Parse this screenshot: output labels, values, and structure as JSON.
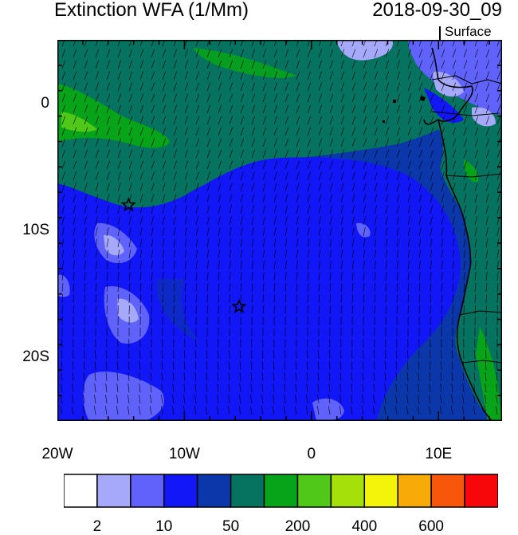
{
  "header": {
    "title": "Extinction WFA (1/Mm)",
    "datetime": "2018-09-30_09",
    "level": "Surface"
  },
  "map": {
    "y_axis_labels": [
      {
        "text": "0",
        "lat": 0
      },
      {
        "text": "10S",
        "lat": -10
      },
      {
        "text": "20S",
        "lat": -20
      }
    ],
    "x_axis_labels": [
      {
        "text": "20W",
        "lon": -20
      },
      {
        "text": "10W",
        "lon": -10
      },
      {
        "text": "0",
        "lon": 0
      },
      {
        "text": "10E",
        "lon": 10
      }
    ],
    "lon_range": [
      -20,
      15
    ],
    "lat_range": [
      -25,
      5
    ],
    "stars": [
      {
        "lon": -14.4,
        "lat": -8.0
      },
      {
        "lon": -5.7,
        "lat": -16.0
      }
    ]
  },
  "legend": {
    "colors": [
      "#ffffff",
      "#a6a8fa",
      "#5f63fb",
      "#1217f7",
      "#0a37a9",
      "#05735f",
      "#07a319",
      "#4fc818",
      "#a6e00b",
      "#f4f40a",
      "#f8aa07",
      "#f8560a",
      "#f8070a"
    ],
    "labels": [
      {
        "text": "2",
        "boundary": 1
      },
      {
        "text": "10",
        "boundary": 3
      },
      {
        "text": "50",
        "boundary": 5
      },
      {
        "text": "200",
        "boundary": 7
      },
      {
        "text": "400",
        "boundary": 9
      },
      {
        "text": "600",
        "boundary": 11
      }
    ]
  }
}
